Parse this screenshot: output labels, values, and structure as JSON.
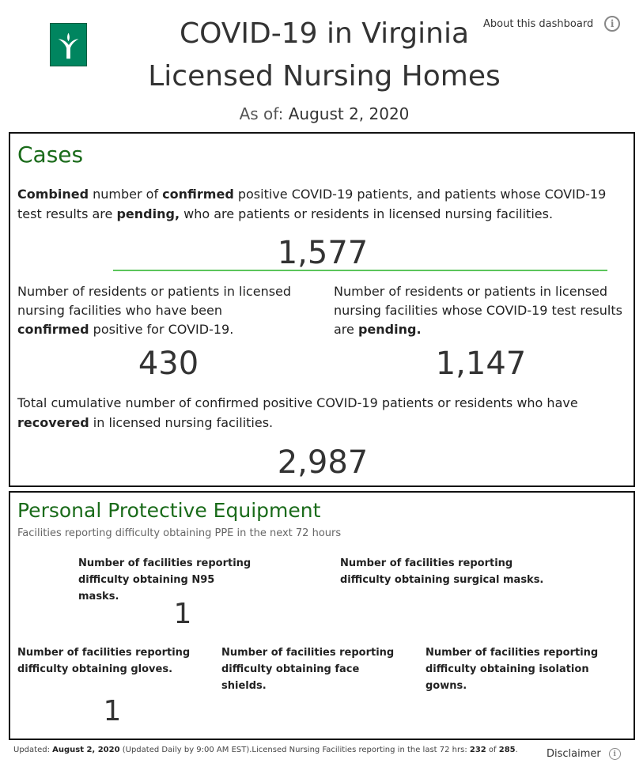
{
  "header": {
    "title_line1": "COVID-19 in Virginia",
    "title_line2": "Licensed Nursing Homes",
    "as_of_label": "As of:",
    "as_of_date": "August 2, 2020",
    "about_link": "About this dashboard",
    "logo_icon": "vdh-logo-icon",
    "logo_color": "#00855f"
  },
  "cases": {
    "title": "Cases",
    "combined_desc": {
      "p1": "Combined",
      "p2": " number of ",
      "p3": "confirmed",
      "p4": " positive COVID-19 patients, and patients whose COVID-19 test results are ",
      "p5": "pending,",
      "p6": " who are patients or residents in licensed nursing facilities."
    },
    "combined_value": "1,577",
    "confirmed_desc": {
      "p1": "Number of residents or patients in licensed nursing facilities who have been ",
      "p2": "confirmed",
      "p3": " positive for COVID-19."
    },
    "confirmed_value": "430",
    "pending_desc": {
      "p1": "Number of residents or patients in licensed nursing facilities whose COVID-19 test results are ",
      "p2": "pending."
    },
    "pending_value": "1,147",
    "recovered_desc": {
      "p1": "Total cumulative number of confirmed positive COVID-19 patients or residents who have ",
      "p2": "recovered",
      "p3": " in licensed nursing facilities."
    },
    "recovered_value": "2,987",
    "accent_color": "#1a6b1a"
  },
  "ppe": {
    "title": "Personal Protective Equipment",
    "subtitle": "Facilities reporting difficulty obtaining PPE in the next 72 hours",
    "n95_label": "Number of facilities reporting difficulty obtaining N95 masks.",
    "n95_value": "1",
    "surgical_label": "Number of facilities reporting difficulty obtaining surgical masks.",
    "surgical_value": "",
    "gloves_label": "Number of facilities reporting difficulty obtaining gloves.",
    "gloves_value": "1",
    "face_label": "Number of facilities reporting difficulty obtaining face shields.",
    "face_value": "",
    "gowns_label": "Number of facilities reporting difficulty obtaining isolation gowns.",
    "gowns_value": ""
  },
  "footer": {
    "updated_label": "Updated: ",
    "updated_date": "August 2, 2020",
    "updated_note": " (Updated Daily by 9:00 AM EST).Licensed Nursing Facilities reporting in the last 72 hrs: ",
    "reporting_count": "232",
    "of_text": " of ",
    "total_count": "285",
    "period": ".",
    "disclaimer": "Disclaimer"
  }
}
